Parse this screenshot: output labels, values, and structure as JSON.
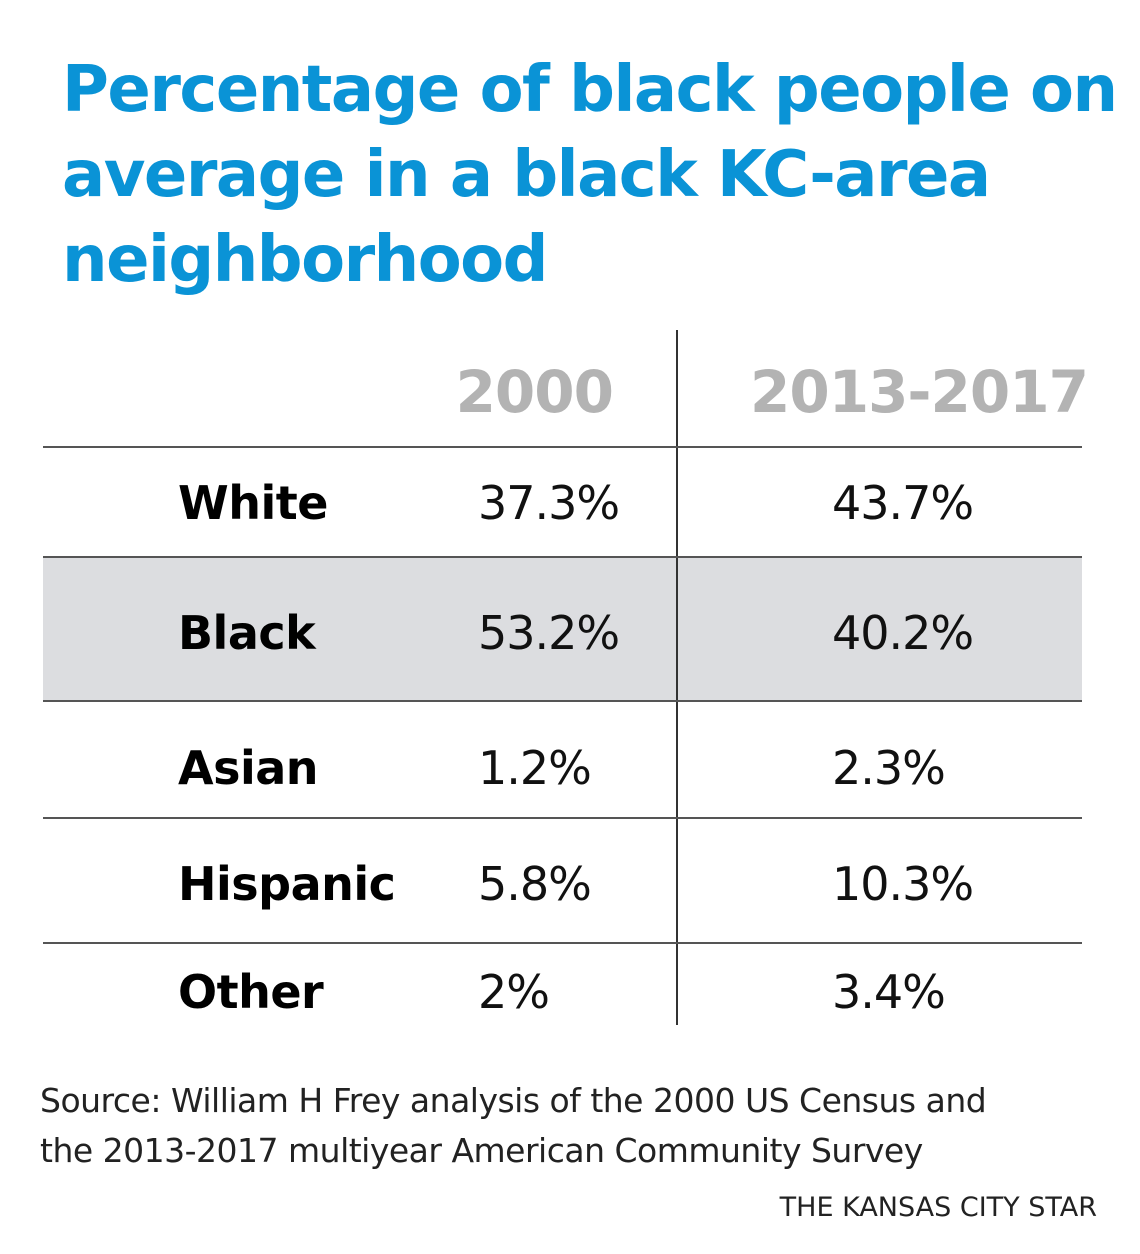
{
  "chart_data": {
    "type": "table",
    "title": "Percentage of black people on average in a black KC-area neighborhood",
    "columns": [
      "2000",
      "2013-2017"
    ],
    "rows": [
      {
        "label": "White",
        "values": [
          "37.3%",
          "43.7%"
        ],
        "highlighted": false
      },
      {
        "label": "Black",
        "values": [
          "53.2%",
          "40.2%"
        ],
        "highlighted": true
      },
      {
        "label": "Asian",
        "values": [
          "1.2%",
          "2.3%"
        ],
        "highlighted": false
      },
      {
        "label": "Hispanic",
        "values": [
          "5.8%",
          "10.3%"
        ],
        "highlighted": false
      },
      {
        "label": "Other",
        "values": [
          "2%",
          "3.4%"
        ],
        "highlighted": false
      }
    ],
    "source_line1": "Source: William H Frey analysis of the 2000 US Census and",
    "source_line2": "the 2013-2017 multiyear American Community Survey",
    "credit": "THE KANSAS CITY STAR",
    "colors": {
      "title": "#0a93d6",
      "header": "#b3b3b3",
      "highlight_row": "#dcdde0"
    }
  }
}
